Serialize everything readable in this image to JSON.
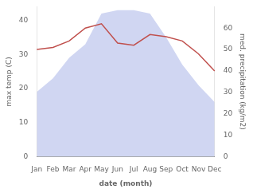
{
  "chart_data": {
    "type": "line",
    "categories": [
      "Jan",
      "Feb",
      "Mar",
      "Apr",
      "May",
      "Jun",
      "Jul",
      "Aug",
      "Sep",
      "Oct",
      "Nov",
      "Dec"
    ],
    "series": [
      {
        "type": "area",
        "color": "#aab4e8",
        "values": [
          19,
          23,
          29,
          33,
          42,
          43,
          43,
          42,
          35,
          27,
          21,
          16
        ]
      },
      {
        "type": "line",
        "color": "#c0504d",
        "axis": "y2",
        "values": [
          50,
          51,
          54,
          60,
          62,
          53,
          52,
          57,
          56,
          54,
          48,
          40
        ]
      }
    ],
    "xlabel": "date (month)",
    "ylabel": "max temp (C)",
    "y2label": "med. precipitation (kg/m2)",
    "ylim": [
      0,
      44
    ],
    "yticks": [
      0,
      10,
      20,
      30,
      40
    ],
    "y2lim": [
      0,
      70
    ],
    "y2ticks": [
      0,
      10,
      20,
      30,
      40,
      50,
      60
    ],
    "grid": false
  }
}
